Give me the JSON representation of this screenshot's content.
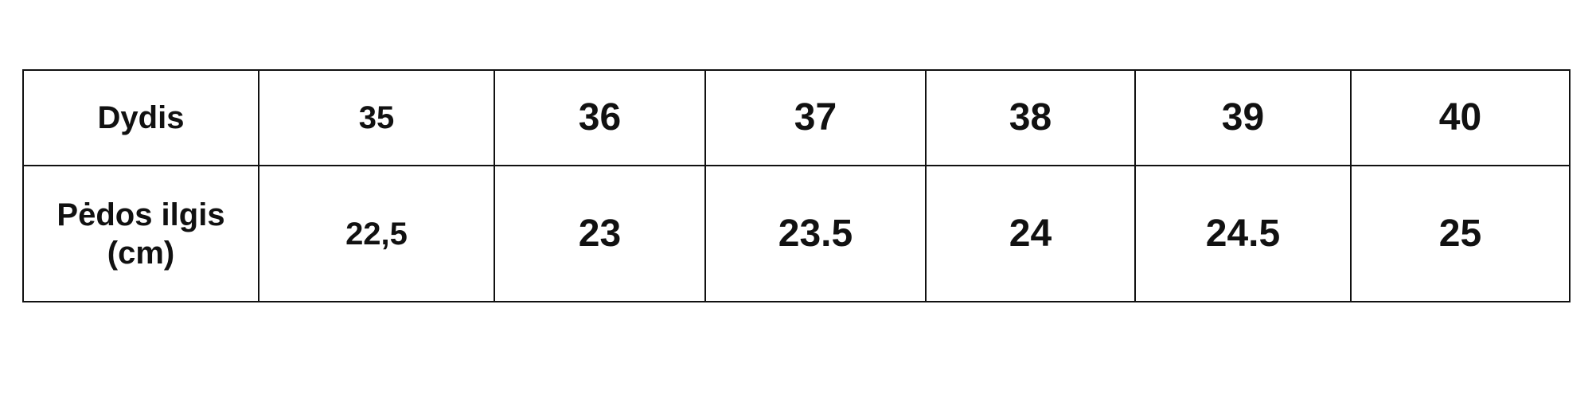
{
  "table": {
    "rows": [
      {
        "label": "Dydis",
        "label_line2": "",
        "values": [
          "35",
          "36",
          "37",
          "38",
          "39",
          "40"
        ]
      },
      {
        "label": "Pėdos ilgis",
        "label_line2": "(cm)",
        "values": [
          "22,5",
          "23",
          "23.5",
          "24",
          "24.5",
          "25"
        ]
      }
    ],
    "border_color": "#111111",
    "text_color": "#111111"
  }
}
